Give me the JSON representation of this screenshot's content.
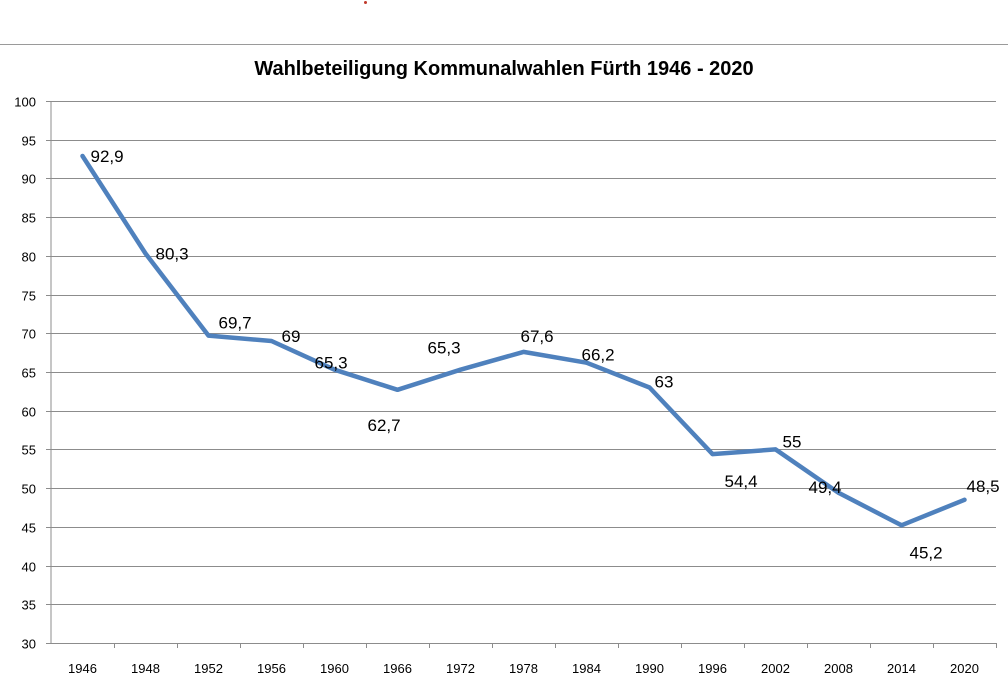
{
  "chart_data": {
    "type": "line",
    "title": "Wahlbeteiligung Kommunalwahlen Fürth 1946 - 2020",
    "xlabel": "",
    "ylabel": "",
    "categories": [
      "1946",
      "1948",
      "1952",
      "1956",
      "1960",
      "1966",
      "1972",
      "1978",
      "1984",
      "1990",
      "1996",
      "2002",
      "2008",
      "2014",
      "2020"
    ],
    "series": [
      {
        "values": [
          92.9,
          80.3,
          69.7,
          69,
          65.3,
          62.7,
          65.3,
          67.6,
          66.2,
          63,
          54.4,
          55,
          49.4,
          45.2,
          48.5
        ],
        "labels": [
          "92,9",
          "80,3",
          "69,7",
          "69",
          "65,3",
          "62,7",
          "65,3",
          "67,6",
          "66,2",
          "63",
          "54,4",
          "55",
          "49,4",
          "45,2",
          "48,5"
        ]
      }
    ],
    "ylim": [
      30,
      100
    ],
    "yticks": [
      100,
      95,
      90,
      85,
      80,
      75,
      70,
      65,
      60,
      55,
      50,
      45,
      40,
      35,
      30
    ],
    "grid": true,
    "legend": "none",
    "line_color": "#4f81bd",
    "grid_color": "#8c8c8c"
  }
}
